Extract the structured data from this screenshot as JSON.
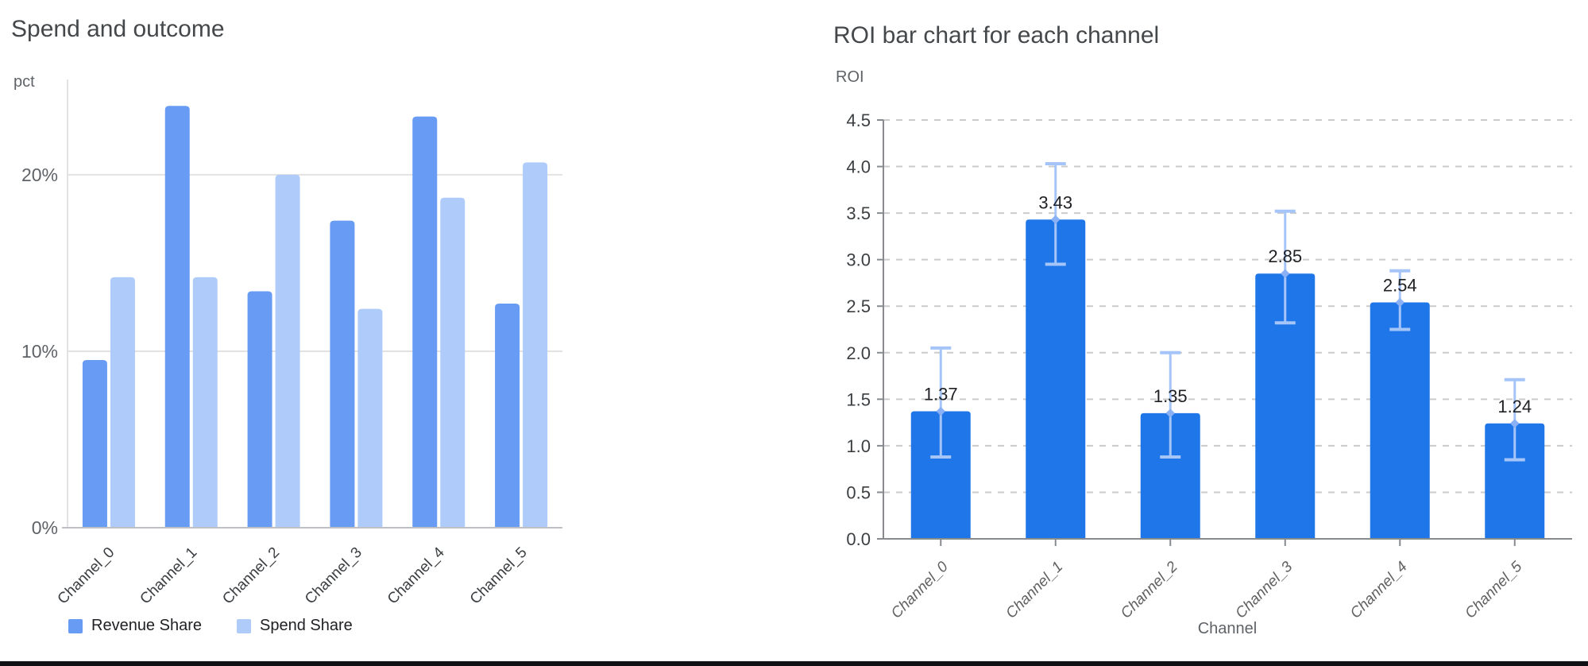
{
  "chart_data": [
    {
      "type": "bar",
      "title": "Spend and outcome",
      "ylabel": "pct",
      "xlabel": "",
      "categories": [
        "Channel_0",
        "Channel_1",
        "Channel_2",
        "Channel_3",
        "Channel_4",
        "Channel_5"
      ],
      "series": [
        {
          "name": "Revenue Share",
          "color": "#689bf4",
          "values": [
            9.5,
            23.9,
            13.4,
            17.4,
            23.3,
            12.7
          ]
        },
        {
          "name": "Spend Share",
          "color": "#aecbfa",
          "values": [
            14.2,
            14.2,
            20.0,
            12.4,
            18.7,
            20.7
          ]
        }
      ],
      "y_ticks": [
        "0%",
        "10%",
        "20%"
      ],
      "y_tick_values": [
        0,
        10,
        20
      ],
      "ylim": [
        0,
        25.4
      ],
      "grid": true,
      "grid_style": "solid",
      "legend_position": "bottom-left",
      "colors": {
        "grid": "#e2e2e2",
        "baseline": "#bdc1c6",
        "tick_text": "#5f6368",
        "category_text": "#3c4043"
      }
    },
    {
      "type": "bar",
      "title": "ROI bar chart for each channel",
      "ylabel": "ROI",
      "xlabel": "Channel",
      "categories": [
        "Channel_0",
        "Channel_1",
        "Channel_2",
        "Channel_3",
        "Channel_4",
        "Channel_5"
      ],
      "values": [
        1.37,
        3.43,
        1.35,
        2.85,
        2.54,
        1.24
      ],
      "value_labels": [
        "1.37",
        "3.43",
        "1.35",
        "2.85",
        "2.54",
        "1.24"
      ],
      "error_low": [
        0.88,
        2.95,
        0.88,
        2.32,
        2.25,
        0.85
      ],
      "error_high": [
        2.05,
        4.03,
        2.0,
        3.52,
        2.88,
        1.71
      ],
      "y_ticks": [
        "0.0",
        "0.5",
        "1.0",
        "1.5",
        "2.0",
        "2.5",
        "3.0",
        "3.5",
        "4.0",
        "4.5"
      ],
      "y_tick_values": [
        0,
        0.5,
        1,
        1.5,
        2,
        2.5,
        3,
        3.5,
        4,
        4.5
      ],
      "ylim": [
        0,
        4.5
      ],
      "grid": true,
      "grid_style": "dashed",
      "legend_position": "none",
      "bar_color": "#1e76e9",
      "error_color": "#a5c5f9",
      "error_marker_color": "#8ab0f5",
      "colors": {
        "grid": "#cbcbcb",
        "axis": "#878b8f",
        "tick_text": "#3c4043",
        "category_text": "#616161",
        "value_text": "#202124"
      }
    }
  ]
}
